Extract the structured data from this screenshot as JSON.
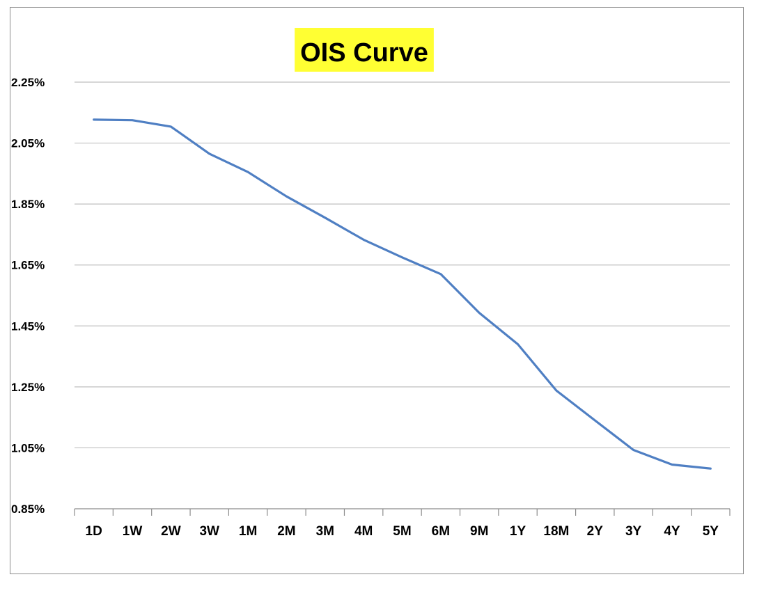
{
  "chart_data": {
    "type": "line",
    "title": "OIS Curve",
    "xlabel": "",
    "ylabel": "",
    "categories": [
      "1D",
      "1W",
      "2W",
      "3W",
      "1M",
      "2M",
      "3M",
      "4M",
      "5M",
      "6M",
      "9M",
      "1Y",
      "18M",
      "2Y",
      "3Y",
      "4Y",
      "5Y"
    ],
    "series": [
      {
        "values": [
          2.127,
          2.125,
          2.104,
          2.015,
          1.955,
          1.875,
          1.805,
          1.733,
          1.675,
          1.62,
          1.493,
          1.39,
          1.238,
          1.14,
          1.043,
          0.995,
          0.982
        ]
      }
    ],
    "ylim": [
      0.85,
      2.25
    ],
    "yticks": [
      "2.25%",
      "2.05%",
      "1.85%",
      "1.65%",
      "1.45%",
      "1.25%",
      "1.05%",
      "0.85%"
    ],
    "ytick_values": [
      2.25,
      2.05,
      1.85,
      1.65,
      1.45,
      1.25,
      1.05,
      0.85
    ],
    "grid": true,
    "legend": "none",
    "colors": {
      "line": "#4f7fc3",
      "grid": "#bfbfbf",
      "axis": "#8c8c8c",
      "title_highlight": "#ffff33"
    }
  }
}
